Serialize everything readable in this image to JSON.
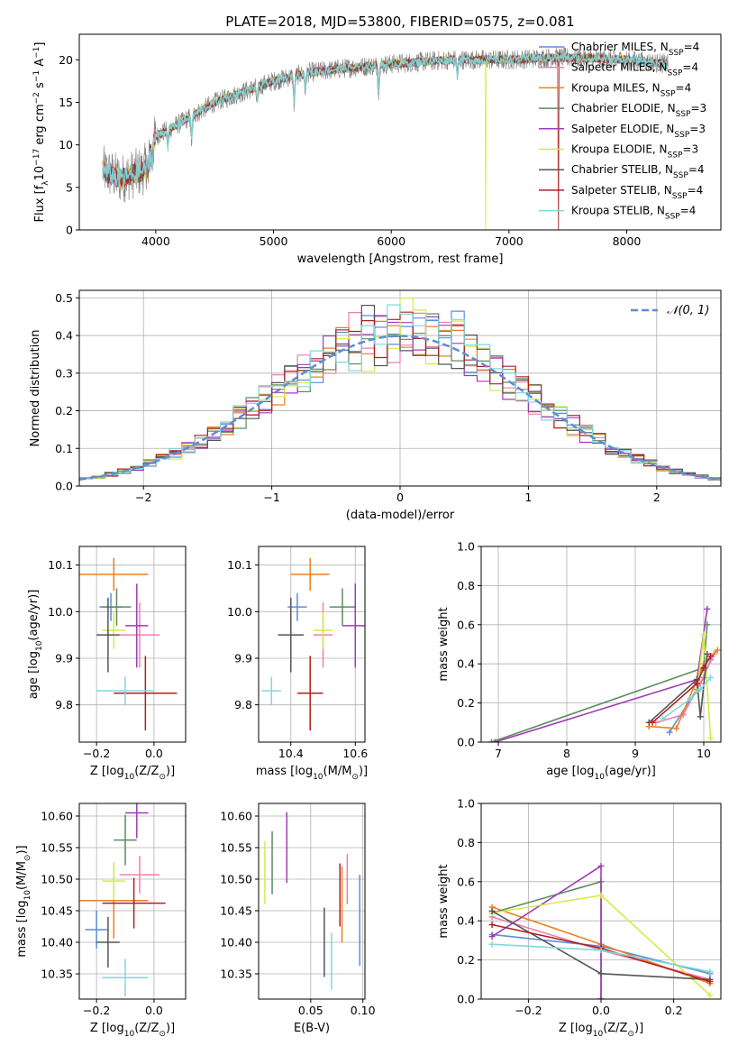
{
  "figure_title": "PLATE=2018, MJD=53800, FIBERID=0575, z=0.081",
  "colors": {
    "Chabrier MILES": "#5b8ed6",
    "Salpeter MILES": "#ef7fb0",
    "Kroupa MILES": "#f07f1e",
    "Chabrier ELODIE": "#5b8c5f",
    "Salpeter ELODIE": "#a03bb5",
    "Kroupa ELODIE": "#d6ea46",
    "Chabrier STELIB": "#555555",
    "Salpeter STELIB": "#b02020",
    "Kroupa STELIB": "#7fd8dc",
    "normal": "#5b8ed6",
    "grid": "#b0b0b0"
  },
  "chart_data": [
    {
      "id": "spectrum",
      "type": "line",
      "title": "PLATE=2018, MJD=53800, FIBERID=0575, z=0.081",
      "xlabel": "wavelength [Angstrom, rest frame]",
      "ylabel": "Flux [fλ 10⁻¹⁷ erg cm⁻² s⁻¹ A⁻¹]",
      "xlim": [
        3350,
        8800
      ],
      "ylim": [
        0,
        23
      ],
      "xticks": [
        4000,
        5000,
        6000,
        7000,
        8000
      ],
      "yticks": [
        0,
        5,
        10,
        15,
        20
      ],
      "grid": false,
      "legend_position": "right",
      "legend": [
        "Chabrier MILES, N_SSP=4",
        "Salpeter MILES, N_SSP=4",
        "Kroupa MILES, N_SSP=4",
        "Chabrier ELODIE, N_SSP=3",
        "Salpeter ELODIE, N_SSP=3",
        "Kroupa ELODIE, N_SSP=3",
        "Chabrier STELIB, N_SSP=4",
        "Salpeter STELIB, N_SSP=4",
        "Kroupa STELIB, N_SSP=4"
      ],
      "continuum": [
        [
          3550,
          7
        ],
        [
          3700,
          6
        ],
        [
          3900,
          7
        ],
        [
          4000,
          11
        ],
        [
          4200,
          12.5
        ],
        [
          4500,
          15
        ],
        [
          4800,
          16.5
        ],
        [
          5000,
          17.5
        ],
        [
          5300,
          18.5
        ],
        [
          5600,
          19
        ],
        [
          6000,
          19.5
        ],
        [
          6500,
          20
        ],
        [
          7000,
          20
        ],
        [
          7400,
          20.3
        ],
        [
          8000,
          20
        ],
        [
          8350,
          19.5
        ]
      ],
      "absorption_features": [
        [
          3934,
          2
        ],
        [
          3969,
          2
        ],
        [
          4102,
          2
        ],
        [
          4304,
          3
        ],
        [
          4861,
          2
        ],
        [
          5175,
          3.5
        ],
        [
          5270,
          2
        ],
        [
          5892,
          3.5
        ],
        [
          6563,
          2
        ]
      ],
      "dropouts": [
        {
          "series": "Kroupa ELODIE",
          "wavelength": 6800
        },
        {
          "series": "Salpeter STELIB",
          "wavelength": 7420
        }
      ]
    },
    {
      "id": "residuals",
      "type": "line",
      "xlabel": "(data-model)/error",
      "ylabel": "Normed distribution",
      "xlim": [
        -2.5,
        2.5
      ],
      "ylim": [
        0,
        0.52
      ],
      "xticks": [
        -2,
        -1,
        0,
        1,
        2
      ],
      "yticks": [
        0.0,
        0.1,
        0.2,
        0.3,
        0.4,
        0.5
      ],
      "grid": true,
      "legend_position": "top-right",
      "legend": [
        "𝒩(0, 1)"
      ],
      "bin_width": 0.1,
      "series": "step histograms of 9 model fits around a standard normal"
    },
    {
      "id": "age-vs-Z",
      "type": "scatter",
      "xlabel": "Z [log10(Z/Z☉)]",
      "ylabel": "age  [log10(age/yr)]",
      "xlim": [
        -0.26,
        0.11
      ],
      "ylim": [
        9.72,
        10.14
      ],
      "xticks": [
        -0.2,
        0.0
      ],
      "yticks": [
        9.8,
        9.9,
        10.0,
        10.1
      ],
      "grid": true,
      "points": [
        {
          "series": "Chabrier MILES",
          "x": -0.15,
          "y": 10.01,
          "xerr": 0.04,
          "yerr": 0.03
        },
        {
          "series": "Salpeter MILES",
          "x": -0.05,
          "y": 9.95,
          "xerr": 0.07,
          "yerr": 0.07
        },
        {
          "series": "Kroupa MILES",
          "x": -0.14,
          "y": 10.08,
          "xerr": 0.12,
          "yerr": 0.035
        },
        {
          "series": "Chabrier ELODIE",
          "x": -0.13,
          "y": 10.01,
          "xerr": 0.05,
          "yerr": 0.04
        },
        {
          "series": "Salpeter ELODIE",
          "x": -0.06,
          "y": 9.97,
          "xerr": 0.04,
          "yerr": 0.09
        },
        {
          "series": "Kroupa ELODIE",
          "x": -0.14,
          "y": 9.96,
          "xerr": 0.04,
          "yerr": 0.04
        },
        {
          "series": "Chabrier STELIB",
          "x": -0.16,
          "y": 9.95,
          "xerr": 0.04,
          "yerr": 0.08
        },
        {
          "series": "Salpeter STELIB",
          "x": -0.03,
          "y": 9.825,
          "xerr": 0.11,
          "yerr": 0.08
        },
        {
          "series": "Kroupa STELIB",
          "x": -0.1,
          "y": 9.83,
          "xerr": 0.1,
          "yerr": 0.03
        }
      ]
    },
    {
      "id": "age-vs-mass",
      "type": "scatter",
      "xlabel": "mass [log10(M/M☉)]",
      "ylabel": "",
      "xlim": [
        10.3,
        10.63
      ],
      "ylim": [
        9.72,
        10.14
      ],
      "xticks": [
        10.4,
        10.6
      ],
      "yticks": [
        9.8,
        9.9,
        10.0,
        10.1
      ],
      "grid": true,
      "points": [
        {
          "series": "Chabrier MILES",
          "x": 10.42,
          "y": 10.01,
          "xerr": 0.03,
          "yerr": 0.03
        },
        {
          "series": "Salpeter MILES",
          "x": 10.5,
          "y": 9.95,
          "xerr": 0.03,
          "yerr": 0.07
        },
        {
          "series": "Kroupa MILES",
          "x": 10.46,
          "y": 10.08,
          "xerr": 0.06,
          "yerr": 0.035
        },
        {
          "series": "Chabrier ELODIE",
          "x": 10.56,
          "y": 10.01,
          "xerr": 0.04,
          "yerr": 0.04
        },
        {
          "series": "Salpeter ELODIE",
          "x": 10.6,
          "y": 9.97,
          "xerr": 0.04,
          "yerr": 0.09
        },
        {
          "series": "Kroupa ELODIE",
          "x": 10.5,
          "y": 9.96,
          "xerr": 0.03,
          "yerr": 0.04
        },
        {
          "series": "Chabrier STELIB",
          "x": 10.4,
          "y": 9.95,
          "xerr": 0.04,
          "yerr": 0.08
        },
        {
          "series": "Salpeter STELIB",
          "x": 10.46,
          "y": 9.825,
          "xerr": 0.04,
          "yerr": 0.08
        },
        {
          "series": "Kroupa STELIB",
          "x": 10.34,
          "y": 9.83,
          "xerr": 0.03,
          "yerr": 0.03
        }
      ]
    },
    {
      "id": "weight-vs-age",
      "type": "line",
      "xlabel": "age  [log10(age/yr)]",
      "ylabel": "mass weight",
      "xlim": [
        6.75,
        10.25
      ],
      "ylim": [
        0,
        1
      ],
      "xticks": [
        7,
        8,
        9,
        10
      ],
      "yticks": [
        0.0,
        0.2,
        0.4,
        0.6,
        0.8,
        1.0
      ],
      "grid": true,
      "series": [
        {
          "series": "Chabrier MILES",
          "points": [
            [
              9.5,
              0.05
            ],
            [
              9.9,
              0.27
            ],
            [
              10.0,
              0.33
            ],
            [
              10.1,
              0.42
            ]
          ]
        },
        {
          "series": "Salpeter MILES",
          "points": [
            [
              9.3,
              0.1
            ],
            [
              9.7,
              0.14
            ],
            [
              9.95,
              0.3
            ],
            [
              10.15,
              0.45
            ]
          ]
        },
        {
          "series": "Kroupa MILES",
          "points": [
            [
              9.2,
              0.08
            ],
            [
              9.6,
              0.07
            ],
            [
              10.0,
              0.4
            ],
            [
              10.2,
              0.47
            ]
          ]
        },
        {
          "series": "Chabrier ELODIE",
          "points": [
            [
              6.9,
              0.0
            ],
            [
              10.0,
              0.38
            ],
            [
              10.05,
              0.6
            ]
          ]
        },
        {
          "series": "Salpeter ELODIE",
          "points": [
            [
              6.95,
              0.0
            ],
            [
              9.9,
              0.32
            ],
            [
              10.05,
              0.68
            ]
          ]
        },
        {
          "series": "Kroupa ELODIE",
          "points": [
            [
              9.9,
              0.26
            ],
            [
              10.0,
              0.55
            ],
            [
              10.1,
              0.02
            ]
          ]
        },
        {
          "series": "Chabrier STELIB",
          "points": [
            [
              9.2,
              0.1
            ],
            [
              9.9,
              0.32
            ],
            [
              9.95,
              0.13
            ],
            [
              10.05,
              0.45
            ]
          ]
        },
        {
          "series": "Salpeter STELIB",
          "points": [
            [
              9.25,
              0.1
            ],
            [
              9.9,
              0.3
            ],
            [
              10.0,
              0.38
            ],
            [
              10.1,
              0.44
            ]
          ]
        },
        {
          "series": "Kroupa STELIB",
          "points": [
            [
              9.4,
              0.12
            ],
            [
              9.8,
              0.22
            ],
            [
              9.95,
              0.27
            ],
            [
              10.1,
              0.33
            ]
          ]
        }
      ]
    },
    {
      "id": "mass-vs-Z",
      "type": "scatter",
      "xlabel": "Z [log10(Z/Z☉)]",
      "ylabel": "mass [log10(M/M☉)]",
      "xlim": [
        -0.26,
        0.11
      ],
      "ylim": [
        10.31,
        10.62
      ],
      "xticks": [
        -0.2,
        0.0
      ],
      "yticks": [
        10.35,
        10.4,
        10.45,
        10.5,
        10.55,
        10.6
      ],
      "grid": true,
      "points": [
        {
          "series": "Chabrier MILES",
          "x": -0.2,
          "y": 10.42,
          "xerr": 0.04,
          "yerr": 0.03
        },
        {
          "series": "Salpeter MILES",
          "x": -0.05,
          "y": 10.507,
          "xerr": 0.07,
          "yerr": 0.03
        },
        {
          "series": "Kroupa MILES",
          "x": -0.14,
          "y": 10.466,
          "xerr": 0.12,
          "yerr": 0.06
        },
        {
          "series": "Chabrier ELODIE",
          "x": -0.1,
          "y": 10.562,
          "xerr": 0.04,
          "yerr": 0.04
        },
        {
          "series": "Salpeter ELODIE",
          "x": -0.06,
          "y": 10.605,
          "xerr": 0.04,
          "yerr": 0.04
        },
        {
          "series": "Kroupa ELODIE",
          "x": -0.14,
          "y": 10.497,
          "xerr": 0.04,
          "yerr": 0.03
        },
        {
          "series": "Chabrier STELIB",
          "x": -0.16,
          "y": 10.4,
          "xerr": 0.04,
          "yerr": 0.04
        },
        {
          "series": "Salpeter STELIB",
          "x": -0.07,
          "y": 10.462,
          "xerr": 0.11,
          "yerr": 0.04
        },
        {
          "series": "Kroupa STELIB",
          "x": -0.1,
          "y": 10.344,
          "xerr": 0.08,
          "yerr": 0.03
        }
      ]
    },
    {
      "id": "mass-vs-ebv",
      "type": "scatter",
      "xlabel": "E(B-V)",
      "ylabel": "",
      "xlim": [
        0.0,
        0.102
      ],
      "ylim": [
        10.31,
        10.62
      ],
      "xticks": [
        0.05,
        0.1
      ],
      "yticks": [
        10.35,
        10.4,
        10.45,
        10.5,
        10.55,
        10.6
      ],
      "grid": true,
      "points": [
        {
          "series": "Chabrier MILES",
          "x": 0.097,
          "y": 10.435,
          "yerr": 0.072
        },
        {
          "series": "Salpeter MILES",
          "x": 0.085,
          "y": 10.5,
          "yerr": 0.04
        },
        {
          "series": "Kroupa MILES",
          "x": 0.08,
          "y": 10.46,
          "yerr": 0.06
        },
        {
          "series": "Chabrier ELODIE",
          "x": 0.013,
          "y": 10.526,
          "yerr": 0.05
        },
        {
          "series": "Salpeter ELODIE",
          "x": 0.027,
          "y": 10.55,
          "yerr": 0.056
        },
        {
          "series": "Kroupa ELODIE",
          "x": 0.006,
          "y": 10.51,
          "yerr": 0.05
        },
        {
          "series": "Chabrier STELIB",
          "x": 0.063,
          "y": 10.4,
          "yerr": 0.055
        },
        {
          "series": "Salpeter STELIB",
          "x": 0.078,
          "y": 10.475,
          "yerr": 0.05
        },
        {
          "series": "Kroupa STELIB",
          "x": 0.07,
          "y": 10.37,
          "yerr": 0.045
        }
      ]
    },
    {
      "id": "weight-vs-Z",
      "type": "line",
      "xlabel": "Z [log10(Z/Z☉)]",
      "ylabel": "mass weight",
      "xlim": [
        -0.33,
        0.33
      ],
      "ylim": [
        0,
        1
      ],
      "xticks": [
        -0.2,
        0.0,
        0.2
      ],
      "yticks": [
        0.0,
        0.2,
        0.4,
        0.6,
        0.8,
        1.0
      ],
      "grid": true,
      "series": [
        {
          "series": "Chabrier MILES",
          "points": [
            [
              -0.3,
              0.33
            ],
            [
              0.0,
              0.27
            ],
            [
              0.3,
              0.13
            ]
          ]
        },
        {
          "series": "Salpeter MILES",
          "points": [
            [
              -0.3,
              0.42
            ],
            [
              0.0,
              0.25
            ],
            [
              0.3,
              0.1
            ]
          ]
        },
        {
          "series": "Kroupa MILES",
          "points": [
            [
              -0.3,
              0.47
            ],
            [
              0.0,
              0.28
            ],
            [
              0.3,
              0.08
            ]
          ]
        },
        {
          "series": "Chabrier ELODIE",
          "points": [
            [
              -0.3,
              0.44
            ],
            [
              0.0,
              0.6
            ],
            [
              0.0,
              0.0
            ]
          ]
        },
        {
          "series": "Salpeter ELODIE",
          "points": [
            [
              -0.3,
              0.32
            ],
            [
              0.0,
              0.68
            ],
            [
              0.0,
              0.0
            ]
          ]
        },
        {
          "series": "Kroupa ELODIE",
          "points": [
            [
              -0.3,
              0.44
            ],
            [
              0.0,
              0.53
            ],
            [
              0.3,
              0.02
            ]
          ]
        },
        {
          "series": "Chabrier STELIB",
          "points": [
            [
              -0.3,
              0.45
            ],
            [
              0.0,
              0.13
            ],
            [
              0.3,
              0.1
            ]
          ]
        },
        {
          "series": "Salpeter STELIB",
          "points": [
            [
              -0.3,
              0.38
            ],
            [
              0.0,
              0.26
            ],
            [
              0.3,
              0.09
            ]
          ]
        },
        {
          "series": "Kroupa STELIB",
          "points": [
            [
              -0.3,
              0.28
            ],
            [
              0.0,
              0.25
            ],
            [
              0.3,
              0.14
            ]
          ]
        }
      ]
    }
  ]
}
